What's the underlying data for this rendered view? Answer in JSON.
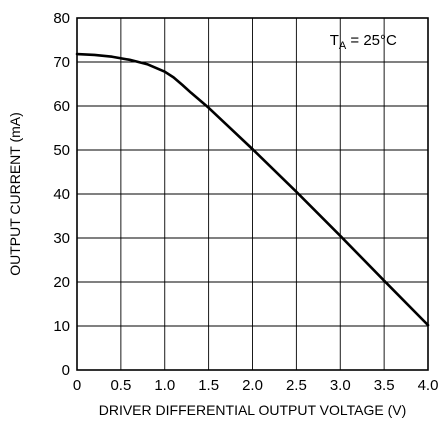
{
  "chart_data": {
    "type": "line",
    "title": "",
    "xlabel": "DRIVER DIFFERENTIAL OUTPUT VOLTAGE (V)",
    "ylabel": "OUTPUT CURRENT (mA)",
    "xlim": [
      0,
      4.0
    ],
    "ylim": [
      0,
      80
    ],
    "grid": true,
    "x_ticks": [
      "0",
      "0.5",
      "1.0",
      "1.5",
      "2.0",
      "2.5",
      "3.0",
      "3.5",
      "4.0"
    ],
    "y_ticks": [
      "0",
      "10",
      "20",
      "30",
      "40",
      "50",
      "60",
      "70",
      "80"
    ],
    "annotation": {
      "main": "T",
      "subscript": "A",
      "rest": " = 25°C"
    },
    "series": [
      {
        "color": "#000000",
        "x": [
          0,
          0.2,
          0.4,
          0.6,
          0.8,
          1.0,
          1.1,
          1.2,
          1.3,
          1.5,
          2.0,
          2.5,
          3.0,
          3.5,
          4.0
        ],
        "y": [
          71.8,
          71.6,
          71.2,
          70.5,
          69.5,
          67.8,
          66.5,
          64.8,
          63.0,
          59.6,
          50.2,
          40.5,
          30.5,
          20.3,
          10.2
        ]
      }
    ]
  }
}
